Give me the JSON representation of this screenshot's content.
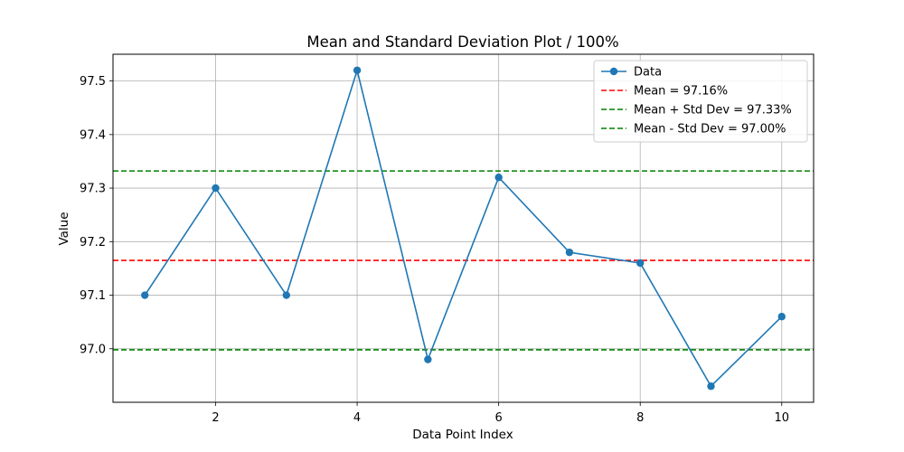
{
  "chart_data": {
    "type": "line",
    "title": "Mean and Standard Deviation Plot / 100%",
    "xlabel": "Data Point Index",
    "ylabel": "Value",
    "x": [
      1,
      2,
      3,
      4,
      5,
      6,
      7,
      8,
      9,
      10
    ],
    "series": [
      {
        "name": "Data",
        "values": [
          97.1,
          97.3,
          97.1,
          97.52,
          96.98,
          97.32,
          97.18,
          97.16,
          96.93,
          97.06
        ],
        "color": "#1f77b4",
        "marker": "circle"
      }
    ],
    "hlines": [
      {
        "name": "Mean = 97.16%",
        "y": 97.165,
        "color": "#ff0000",
        "style": "dashed"
      },
      {
        "name": "Mean + Std Dev = 97.33%",
        "y": 97.332,
        "color": "#008000",
        "style": "dashed"
      },
      {
        "name": "Mean - Std Dev = 97.00%",
        "y": 96.998,
        "color": "#008000",
        "style": "dashed"
      }
    ],
    "xlim": [
      0.55,
      10.45
    ],
    "ylim": [
      96.9,
      97.55
    ],
    "xticks": [
      2,
      4,
      6,
      8,
      10
    ],
    "yticks": [
      97.0,
      97.1,
      97.2,
      97.3,
      97.4,
      97.5
    ],
    "ytick_labels": [
      "97.0",
      "97.1",
      "97.2",
      "97.3",
      "97.4",
      "97.5"
    ],
    "grid": true,
    "legend_position": "top-right"
  }
}
